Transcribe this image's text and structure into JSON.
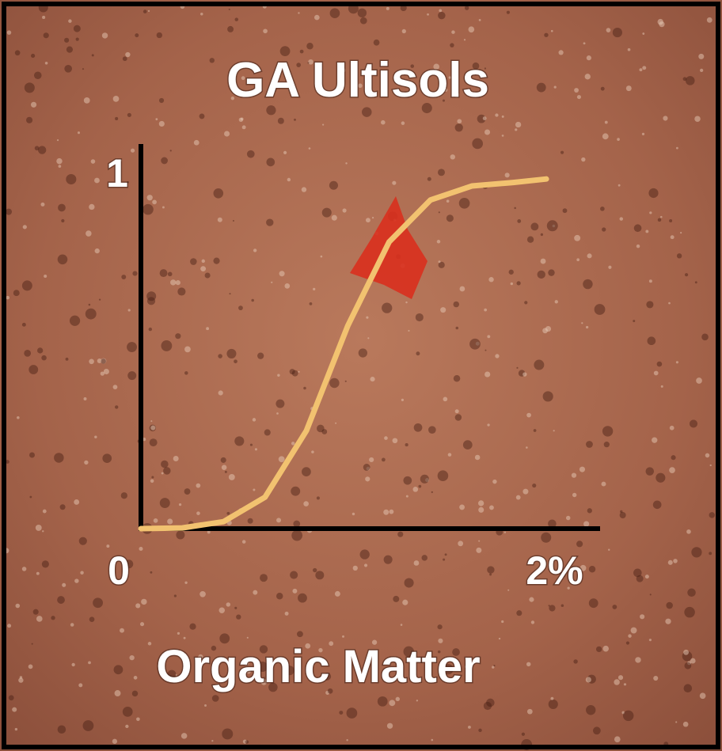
{
  "chart_data": {
    "type": "line",
    "title": "GA Ultisols",
    "x_label": "Organic Matter",
    "x": [
      0,
      0.2,
      0.4,
      0.6,
      0.8,
      1.0,
      1.2,
      1.4,
      1.6,
      1.8,
      1.96
    ],
    "series": [
      {
        "name": null,
        "color": "#f2c270",
        "values": [
          0,
          0.002,
          0.02,
          0.09,
          0.28,
          0.58,
          0.82,
          0.94,
          0.98,
          0.99,
          1.0
        ]
      }
    ],
    "xlim": [
      0,
      2.22
    ],
    "xticks": [
      0,
      {
        "value": 2,
        "label": "2%"
      }
    ],
    "ylim": [
      0,
      1.1
    ],
    "yticks": [
      1
    ],
    "grid": false
  }
}
